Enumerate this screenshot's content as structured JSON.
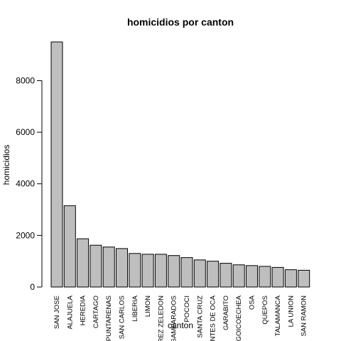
{
  "chart_data": {
    "type": "bar",
    "title": "homicidios por canton",
    "xlabel": "canton",
    "ylabel": "homicidios",
    "categories": [
      "SAN JOSE",
      "ALAJUELA",
      "HEREDIA",
      "CARTAGO",
      "PUNTARENAS",
      "SAN CARLOS",
      "LIBERIA",
      "LIMON",
      "PEREZ ZELEDON",
      "DESAMPARADOS",
      "POCOCI",
      "SANTA CRUZ",
      "MONTES DE OCA",
      "GARABITO",
      "GOICOECHEA",
      "OSA",
      "QUEPOS",
      "TALAMANCA",
      "LA UNION",
      "SAN RAMON"
    ],
    "values": [
      9500,
      3150,
      1870,
      1620,
      1550,
      1490,
      1300,
      1270,
      1270,
      1220,
      1140,
      1050,
      1000,
      920,
      860,
      830,
      800,
      760,
      670,
      650
    ],
    "yticks": [
      0,
      2000,
      4000,
      6000,
      8000
    ],
    "ylim": [
      0,
      9500
    ],
    "bar_color": "#bebebe",
    "grid": false,
    "legend": "none"
  }
}
